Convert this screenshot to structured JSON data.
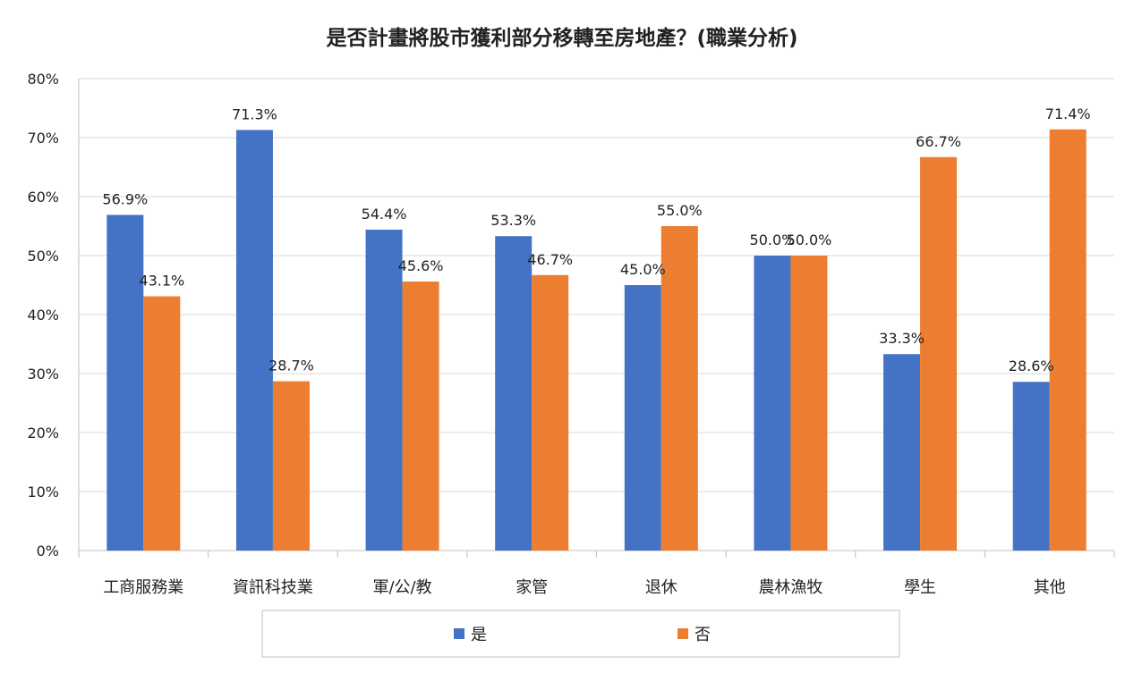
{
  "chart_data": {
    "type": "bar",
    "title": "是否計畫將股市獲利部分移轉至房地產？(職業分析)",
    "xlabel": "",
    "ylabel": "",
    "ylim": [
      0,
      80
    ],
    "yticks": [
      "0%",
      "10%",
      "20%",
      "30%",
      "40%",
      "50%",
      "60%",
      "70%",
      "80%"
    ],
    "grid": true,
    "legend_position": "bottom",
    "categories": [
      "工商服務業",
      "資訊科技業",
      "軍/公/教",
      "家管",
      "退休",
      "農林漁牧",
      "學生",
      "其他"
    ],
    "series": [
      {
        "name": "是",
        "color": "#4472C4",
        "values": [
          56.9,
          71.3,
          54.4,
          53.3,
          45.0,
          50.0,
          33.3,
          28.6
        ],
        "labels": [
          "56.9%",
          "71.3%",
          "54.4%",
          "53.3%",
          "45.0%",
          "50.0%",
          "33.3%",
          "28.6%"
        ]
      },
      {
        "name": "否",
        "color": "#ED7D31",
        "values": [
          43.1,
          28.7,
          45.6,
          46.7,
          55.0,
          50.0,
          66.7,
          71.4
        ],
        "labels": [
          "43.1%",
          "28.7%",
          "45.6%",
          "46.7%",
          "55.0%",
          "50.0%",
          "66.7%",
          "71.4%"
        ]
      }
    ]
  }
}
